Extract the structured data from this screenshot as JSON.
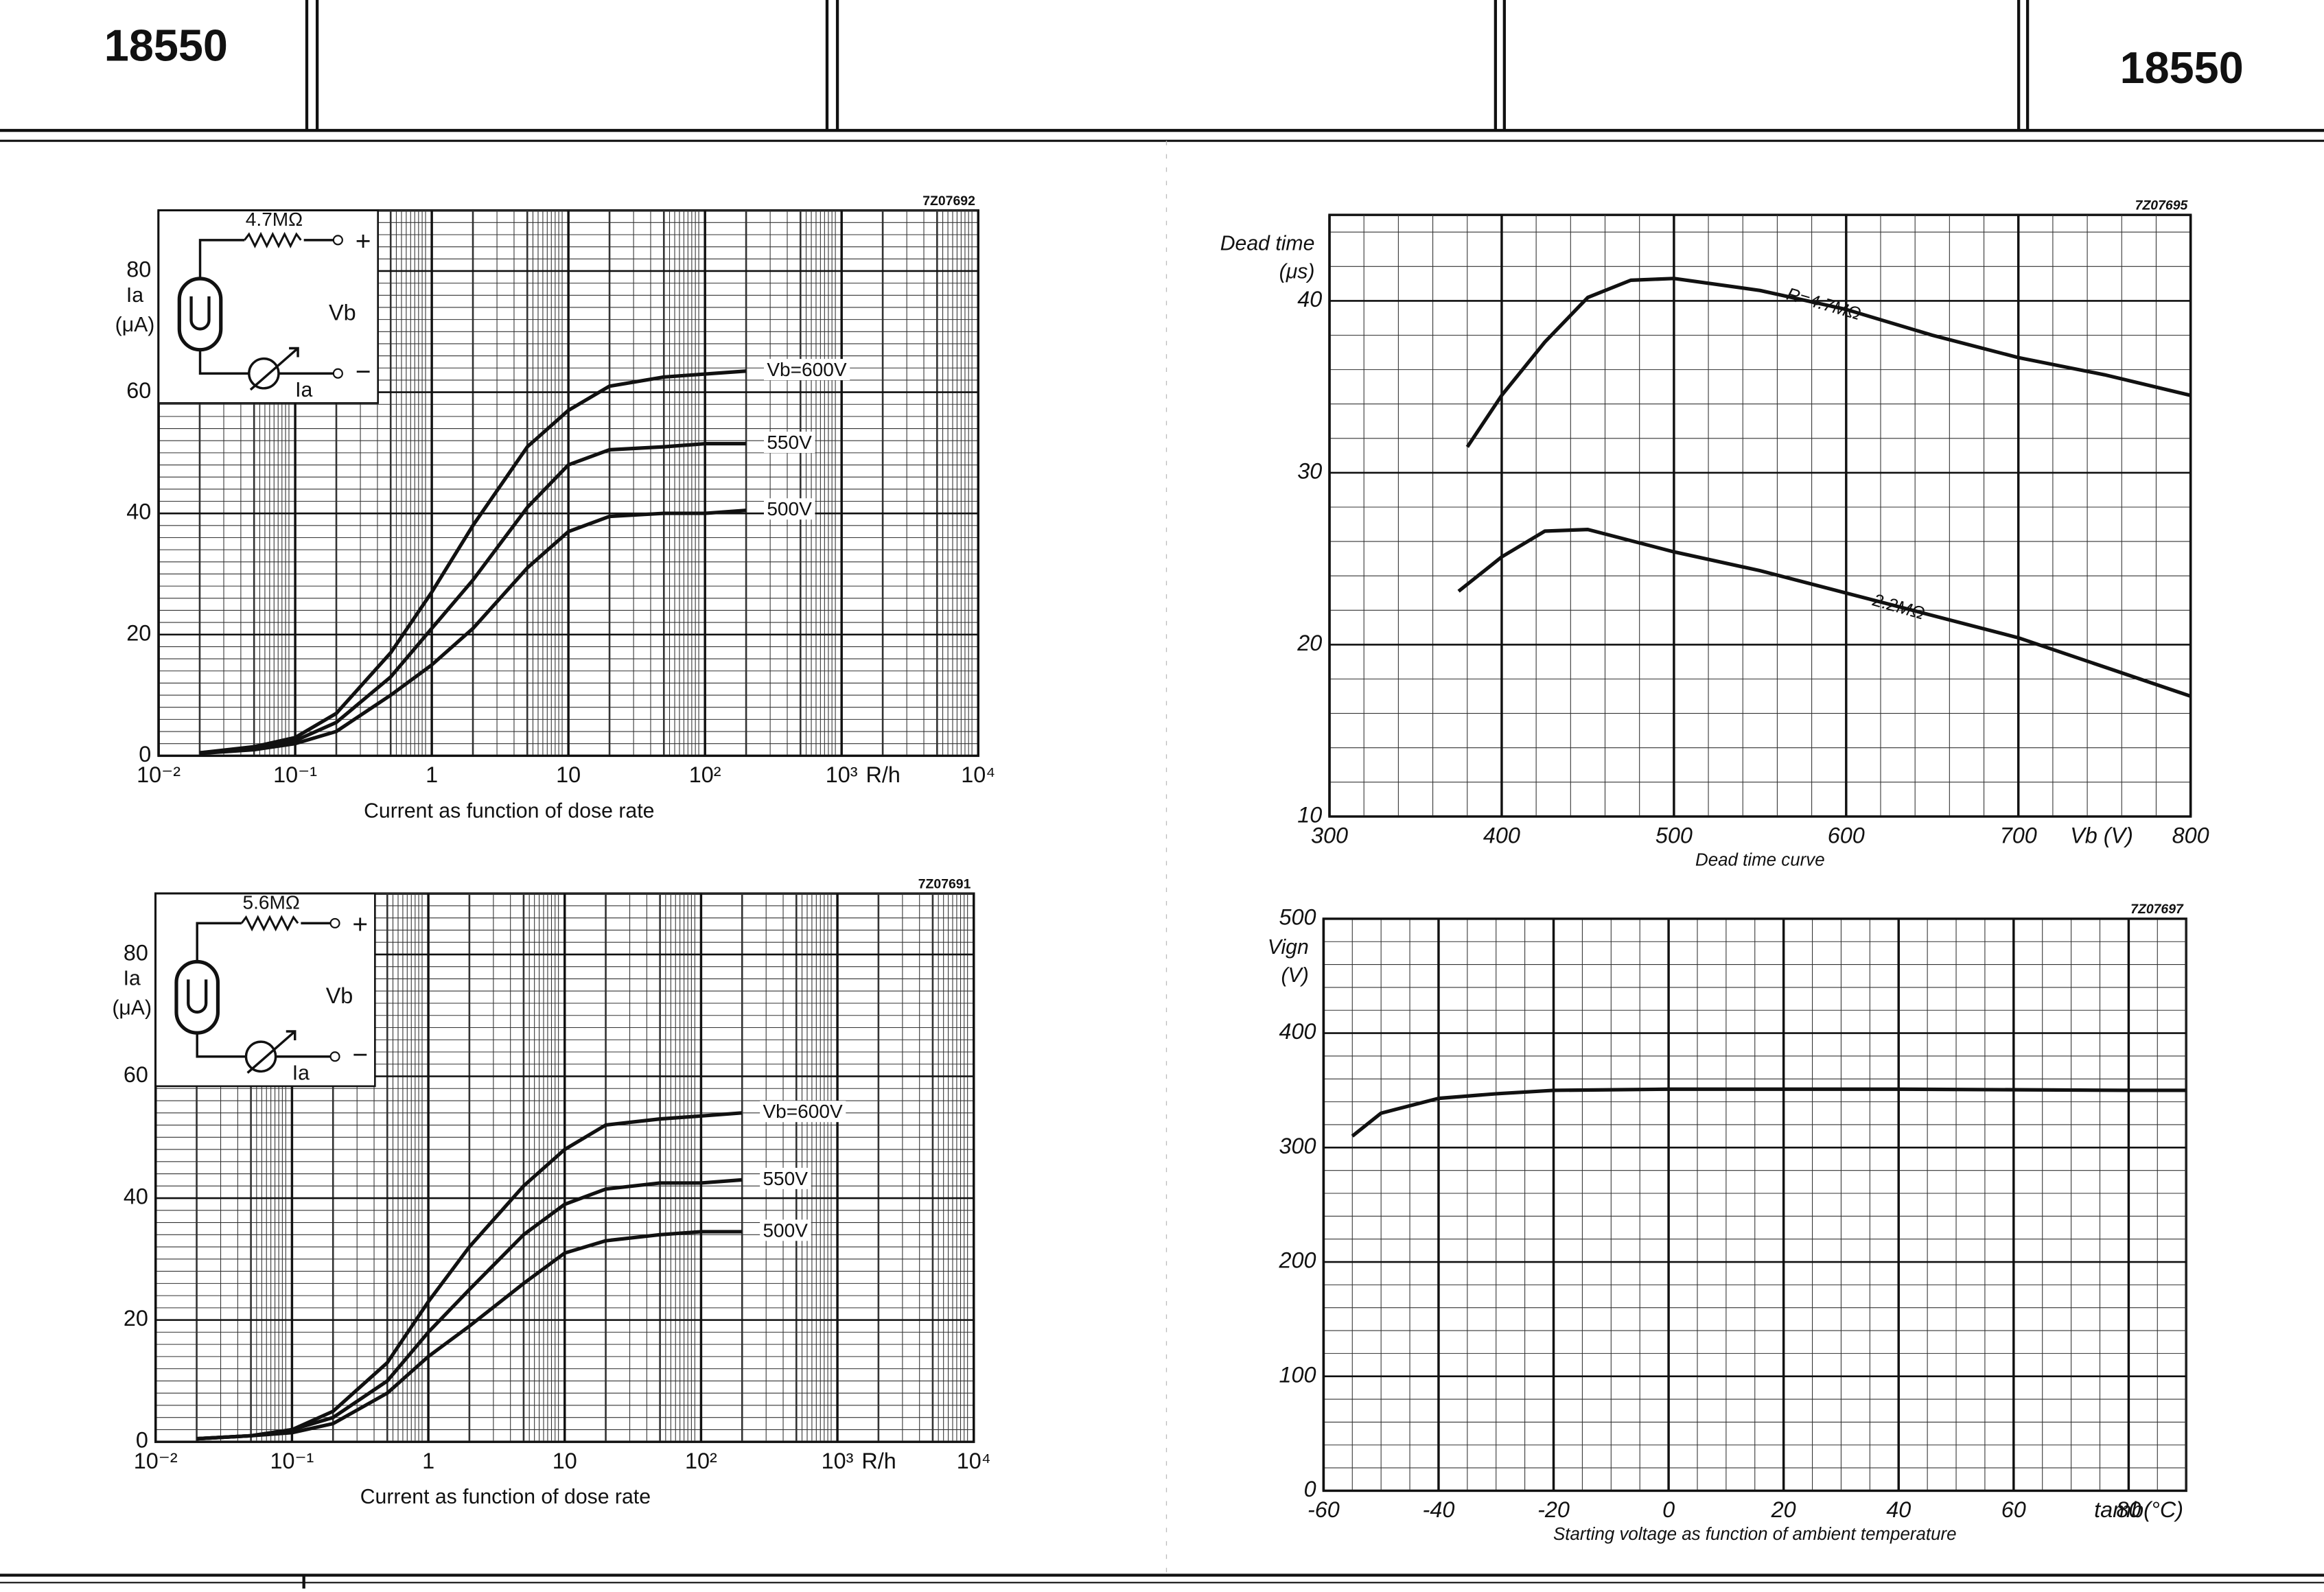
{
  "header": {
    "left": "18550",
    "right": "18550"
  },
  "chart_data": [
    {
      "type": "line",
      "code": "7Z07692",
      "title": "Current as function of dose rate",
      "ylabel": [
        "Ia",
        "(μA)"
      ],
      "xunit": "R/h",
      "xlog": true,
      "xlim": [
        0.01,
        10000
      ],
      "xticks": [
        {
          "value": 0.01,
          "label": "10⁻²"
        },
        {
          "value": 0.1,
          "label": "10⁻¹"
        },
        1,
        10,
        {
          "value": 100,
          "label": "10²"
        },
        {
          "value": 1000,
          "label": "10³"
        },
        {
          "value": 10000,
          "label": "10⁴"
        }
      ],
      "ylim": [
        0,
        90
      ],
      "yticks": [
        0,
        20,
        40,
        60,
        80
      ],
      "grid": true,
      "minor_grid": true,
      "inset": {
        "resistor": "4.7MΩ",
        "plus": "+",
        "minus": "−",
        "voltage": "Vb",
        "current": "Ia"
      },
      "x": [
        0.02,
        0.05,
        0.1,
        0.2,
        0.5,
        1,
        2,
        5,
        10,
        20,
        50,
        100,
        200
      ],
      "series": [
        {
          "name": "Vb=600V",
          "color": "#111111",
          "values": [
            0.5,
            1.5,
            3,
            7,
            17,
            27,
            38,
            51,
            57,
            61,
            62.5,
            63,
            63.5
          ]
        },
        {
          "name": "550V",
          "color": "#111111",
          "values": [
            0.5,
            1.3,
            2.5,
            5.5,
            13,
            21,
            29,
            41,
            48,
            50.5,
            51,
            51.5,
            51.5
          ]
        },
        {
          "name": "500V",
          "color": "#111111",
          "values": [
            0.4,
            1,
            2,
            4,
            10,
            15,
            21,
            31,
            37,
            39.5,
            40,
            40,
            40.5
          ]
        }
      ]
    },
    {
      "type": "line",
      "code": "7Z07691",
      "title": "Current as function of dose rate",
      "ylabel": [
        "Ia",
        "(μA)"
      ],
      "xunit": "R/h",
      "xlog": true,
      "xlim": [
        0.01,
        10000
      ],
      "xticks": [
        {
          "value": 0.01,
          "label": "10⁻²"
        },
        {
          "value": 0.1,
          "label": "10⁻¹"
        },
        1,
        10,
        {
          "value": 100,
          "label": "10²"
        },
        {
          "value": 1000,
          "label": "10³"
        },
        {
          "value": 10000,
          "label": "10⁴"
        }
      ],
      "ylim": [
        0,
        90
      ],
      "yticks": [
        0,
        20,
        40,
        60,
        80
      ],
      "grid": true,
      "minor_grid": true,
      "inset": {
        "resistor": "5.6MΩ",
        "plus": "+",
        "minus": "−",
        "voltage": "Vb",
        "current": "Ia"
      },
      "x": [
        0.02,
        0.05,
        0.1,
        0.2,
        0.5,
        1,
        2,
        5,
        10,
        20,
        50,
        100,
        200
      ],
      "series": [
        {
          "name": "Vb=600V",
          "color": "#111111",
          "values": [
            0.5,
            1,
            2,
            5,
            13,
            23,
            32,
            42,
            48,
            52,
            53,
            53.5,
            54
          ]
        },
        {
          "name": "550V",
          "color": "#111111",
          "values": [
            0.5,
            1,
            2,
            4,
            10,
            18,
            25,
            34,
            39,
            41.5,
            42.5,
            42.5,
            43
          ]
        },
        {
          "name": "500V",
          "color": "#111111",
          "values": [
            0.5,
            1,
            1.5,
            3,
            8,
            14,
            19,
            26,
            31,
            33,
            34,
            34.5,
            34.5
          ]
        }
      ]
    },
    {
      "type": "line",
      "code": "7Z07695",
      "title": "Dead time curve",
      "ylabel": [
        "Dead time",
        "(μs)"
      ],
      "xunit": "Vb (V)",
      "xlog": false,
      "xlim": [
        300,
        800
      ],
      "xticks": [
        300,
        400,
        500,
        600,
        700,
        800
      ],
      "ylim": [
        10,
        45
      ],
      "yticks": [
        10,
        20,
        30,
        40
      ],
      "grid": true,
      "minor_grid": true,
      "series": [
        {
          "name": "R=4.7MΩ",
          "color": "#111111",
          "x": [
            380,
            400,
            425,
            450,
            475,
            500,
            550,
            600,
            650,
            700,
            750,
            800
          ],
          "values": [
            31.5,
            34.5,
            37.6,
            40.2,
            41.2,
            41.3,
            40.6,
            39.5,
            38,
            36.7,
            35.7,
            34.5
          ]
        },
        {
          "name": "2.2MΩ",
          "color": "#111111",
          "x": [
            375,
            400,
            425,
            450,
            500,
            550,
            600,
            650,
            700,
            750,
            800
          ],
          "values": [
            23.1,
            25.1,
            26.6,
            26.7,
            25.4,
            24.3,
            23,
            21.7,
            20.4,
            18.7,
            17
          ]
        }
      ]
    },
    {
      "type": "line",
      "code": "7Z07697",
      "title": "Starting voltage as function of ambient temperature",
      "ylabel": [
        "Vign",
        "(V)"
      ],
      "xunit": "tamb(°C)",
      "xlog": false,
      "xlim": [
        -60,
        90
      ],
      "xticks": [
        -60,
        -40,
        -20,
        0,
        20,
        40,
        60,
        80
      ],
      "ylim": [
        0,
        500
      ],
      "yticks": [
        0,
        100,
        200,
        300,
        400,
        500
      ],
      "grid": true,
      "minor_grid": true,
      "series": [
        {
          "color": "#111111",
          "x": [
            -55,
            -50,
            -40,
            -30,
            -20,
            0,
            40,
            80,
            90
          ],
          "values": [
            310,
            330,
            343,
            347,
            350,
            351,
            351,
            350,
            350
          ]
        }
      ]
    }
  ]
}
